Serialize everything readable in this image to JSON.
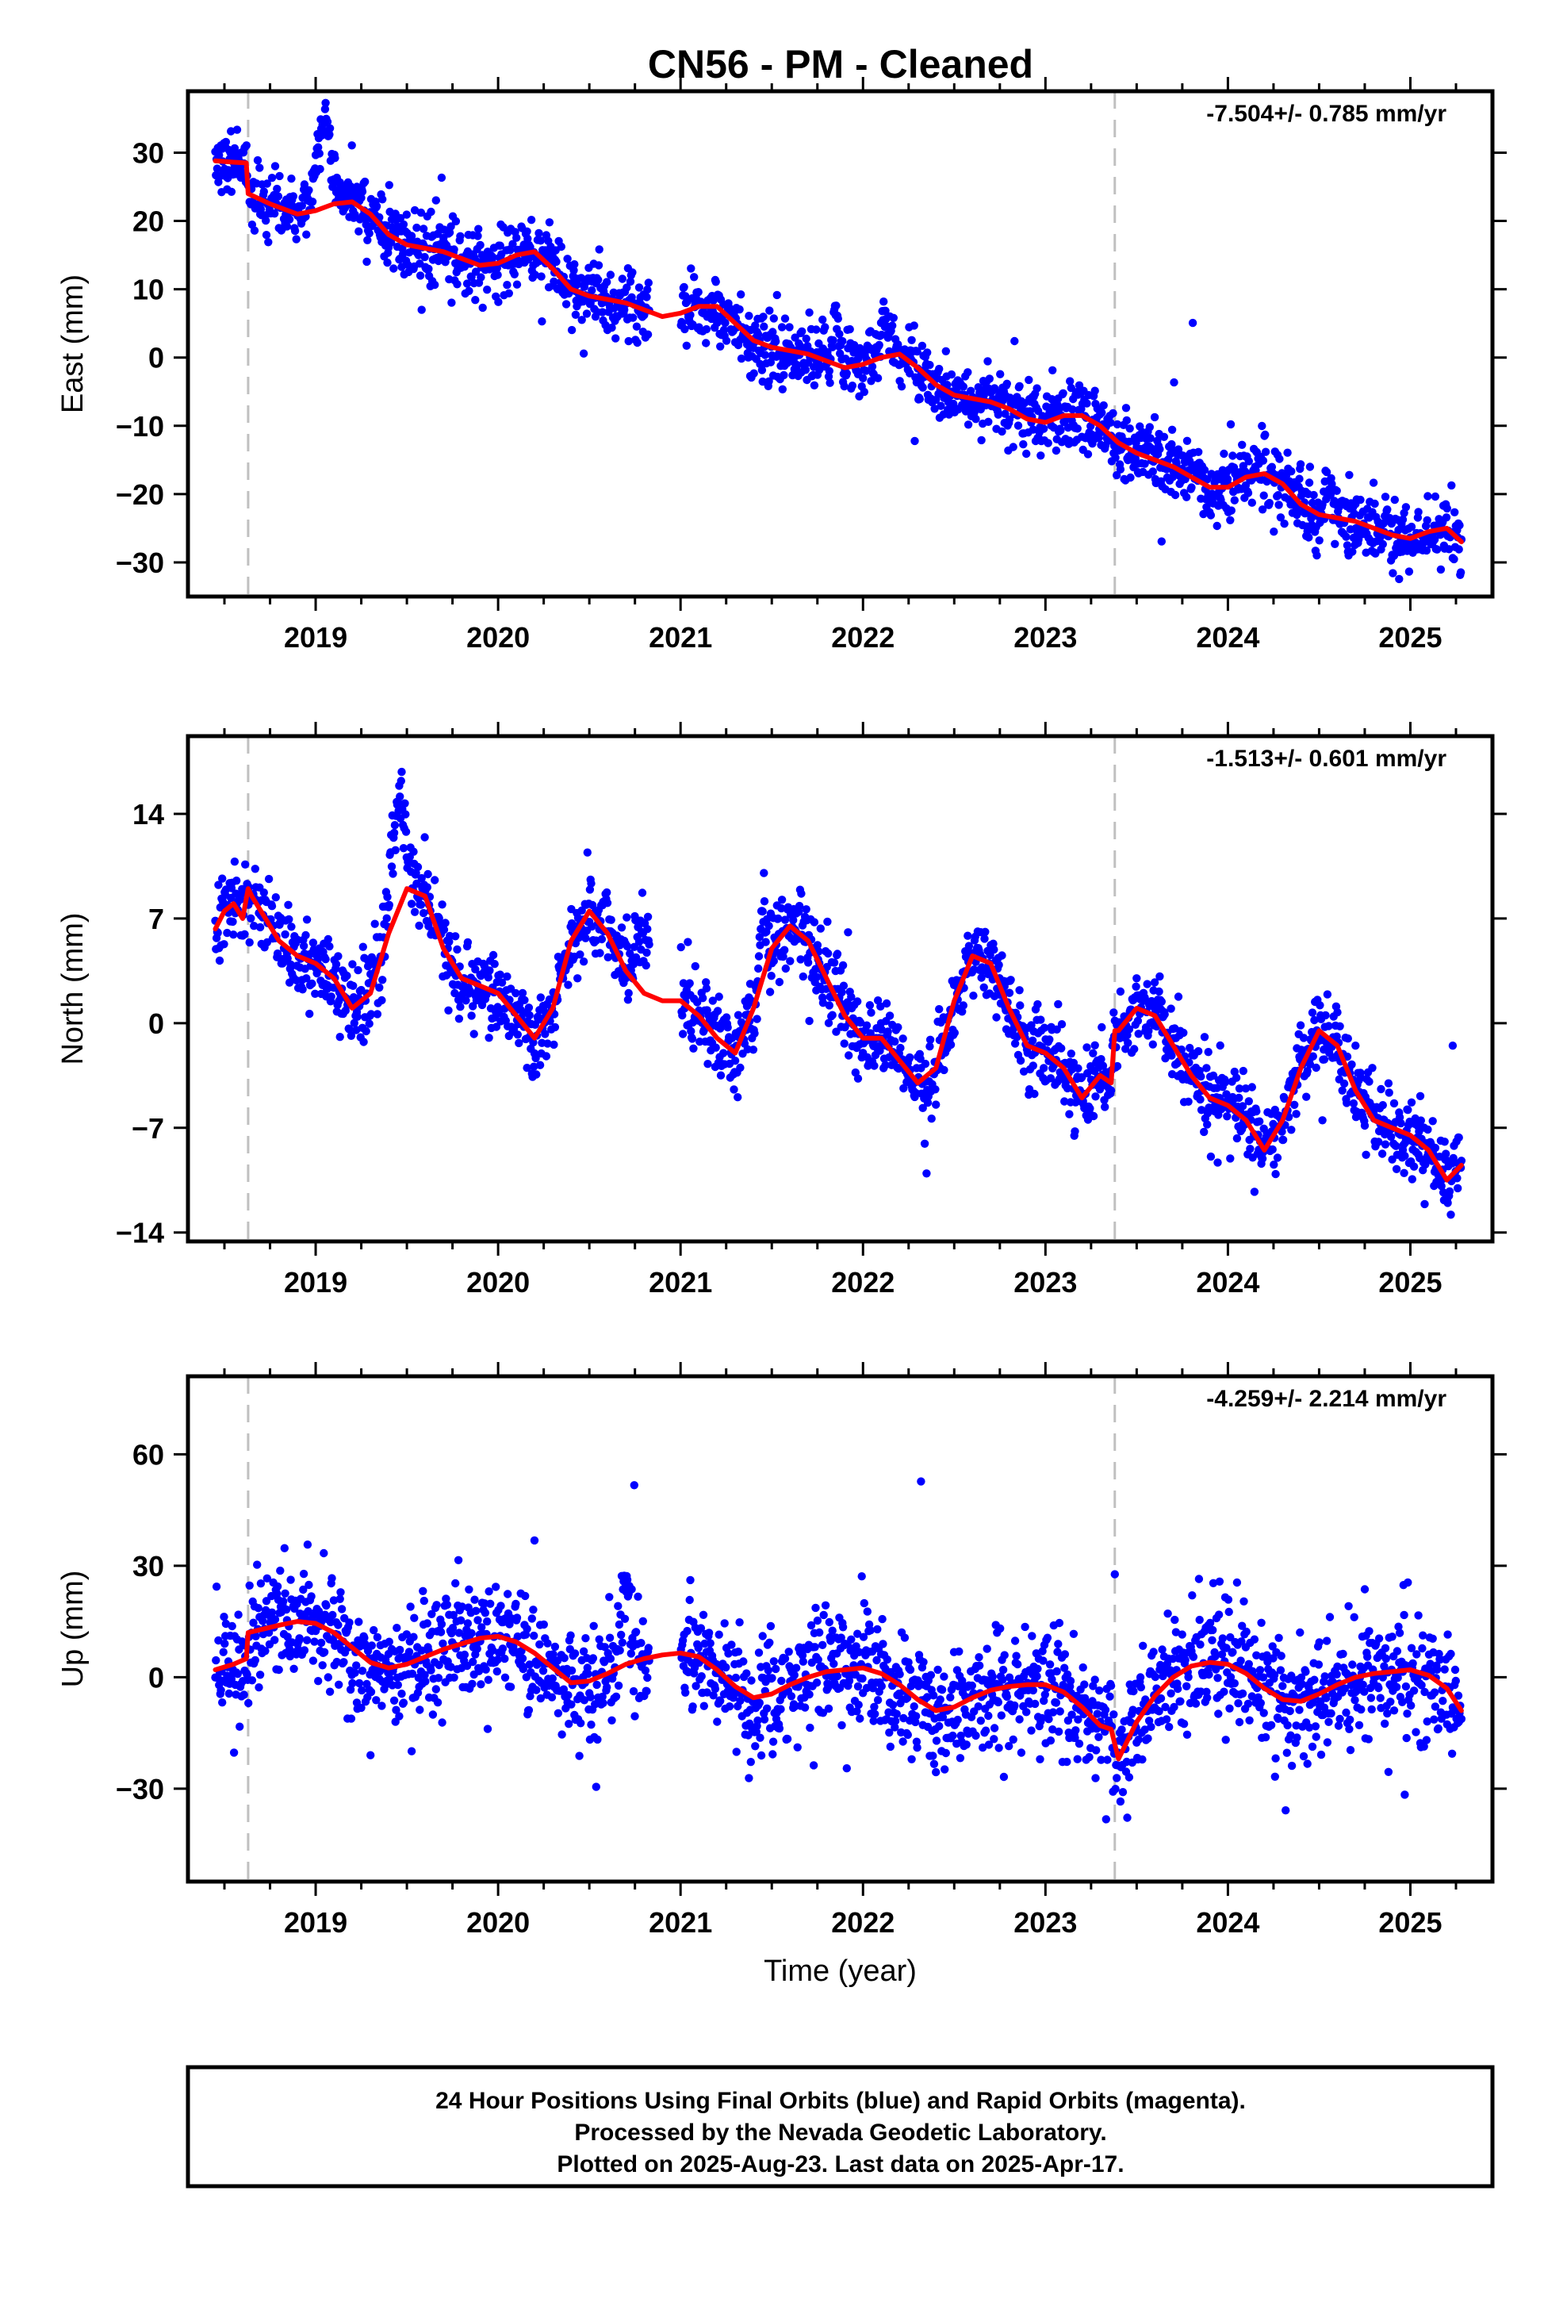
{
  "title": "CN56  - PM - Cleaned",
  "footer": {
    "lines": [
      "24 Hour Positions Using Final Orbits (blue) and Rapid Orbits (magenta).",
      "Processed by the Nevada Geodetic Laboratory.",
      "Plotted on 2025-Aug-23. Last data on 2025-Apr-17."
    ]
  },
  "chart_data": [
    {
      "type": "scatter",
      "ylabel": "East (mm)",
      "xlabel": "",
      "rate_label": "-7.504+/- 0.785 mm/yr",
      "xlim": [
        2018.3,
        2025.45
      ],
      "ylim": [
        -35,
        39
      ],
      "xticks": [
        2019,
        2020,
        2021,
        2022,
        2023,
        2024,
        2025
      ],
      "xtick_labels": [
        "2019",
        "2020",
        "2021",
        "2022",
        "2023",
        "2024",
        "2025"
      ],
      "yticks": [
        -30,
        -20,
        -10,
        0,
        10,
        20,
        30
      ],
      "ytick_labels": [
        "−30",
        "−20",
        "−10",
        "0",
        "10",
        "20",
        "30"
      ],
      "grid": false,
      "vlines": [
        2018.63,
        2023.38
      ],
      "colors": {
        "points": "#0000ff",
        "model": "#ff0000",
        "vline": "#c0c0c0"
      },
      "model": {
        "name": "model",
        "x": [
          2018.45,
          2018.55,
          2018.62,
          2018.63,
          2018.75,
          2018.9,
          2019.0,
          2019.1,
          2019.2,
          2019.3,
          2019.4,
          2019.5,
          2019.6,
          2019.7,
          2019.8,
          2019.9,
          2020.0,
          2020.1,
          2020.2,
          2020.3,
          2020.4,
          2020.5,
          2020.6,
          2020.7,
          2020.8,
          2020.9,
          2021.0,
          2021.1,
          2021.2,
          2021.3,
          2021.4,
          2021.5,
          2021.6,
          2021.7,
          2021.8,
          2021.9,
          2022.0,
          2022.1,
          2022.2,
          2022.3,
          2022.4,
          2022.5,
          2022.6,
          2022.7,
          2022.8,
          2022.9,
          2023.0,
          2023.1,
          2023.2,
          2023.3,
          2023.4,
          2023.5,
          2023.6,
          2023.7,
          2023.8,
          2023.9,
          2024.0,
          2024.1,
          2024.2,
          2024.3,
          2024.4,
          2024.5,
          2024.6,
          2024.7,
          2024.8,
          2024.9,
          2025.0,
          2025.1,
          2025.2,
          2025.28
        ],
        "y": [
          28.8,
          28.6,
          28.5,
          24.0,
          22.5,
          21.0,
          21.5,
          22.5,
          22.8,
          21.0,
          18.0,
          16.5,
          16.0,
          15.5,
          14.5,
          13.5,
          13.8,
          15.0,
          15.5,
          13.0,
          10.0,
          9.0,
          8.5,
          8.0,
          7.0,
          6.0,
          6.5,
          7.5,
          7.5,
          5.0,
          2.5,
          1.5,
          1.0,
          0.5,
          -0.5,
          -1.5,
          -1.0,
          0.0,
          0.5,
          -1.5,
          -4.0,
          -5.5,
          -6.0,
          -6.5,
          -7.5,
          -9.0,
          -9.5,
          -8.5,
          -8.5,
          -10.0,
          -12.5,
          -14.0,
          -15.0,
          -16.0,
          -17.5,
          -19.0,
          -19.0,
          -17.5,
          -17.0,
          -18.5,
          -21.5,
          -23.0,
          -23.5,
          -24.0,
          -25.0,
          -26.0,
          -26.5,
          -25.5,
          -25.0,
          -27.0
        ]
      },
      "noise": 2.4,
      "bumps": [
        [
          2019.05,
          12.0,
          0.06
        ],
        [
          2021.85,
          8.0,
          0.02
        ],
        [
          2022.12,
          5.0,
          0.04
        ],
        [
          2024.55,
          5.0,
          0.03
        ]
      ],
      "points_note": "daily positions (blue)"
    },
    {
      "type": "scatter",
      "ylabel": "North (mm)",
      "xlabel": "",
      "rate_label": "-1.513+/- 0.601 mm/yr",
      "xlim": [
        2018.3,
        2025.45
      ],
      "ylim": [
        -14.6,
        19.2
      ],
      "xticks": [
        2019,
        2020,
        2021,
        2022,
        2023,
        2024,
        2025
      ],
      "xtick_labels": [
        "2019",
        "2020",
        "2021",
        "2022",
        "2023",
        "2024",
        "2025"
      ],
      "yticks": [
        -14,
        -7,
        0,
        7,
        14
      ],
      "ytick_labels": [
        "−14",
        "−7",
        "0",
        "7",
        "14"
      ],
      "grid": false,
      "vlines": [
        2018.63,
        2023.38
      ],
      "colors": {
        "points": "#0000ff",
        "model": "#ff0000",
        "vline": "#c0c0c0"
      },
      "model": {
        "name": "model",
        "x": [
          2018.45,
          2018.5,
          2018.55,
          2018.6,
          2018.63,
          2018.65,
          2018.7,
          2018.8,
          2018.9,
          2019.0,
          2019.1,
          2019.2,
          2019.3,
          2019.4,
          2019.5,
          2019.6,
          2019.7,
          2019.8,
          2019.9,
          2020.0,
          2020.1,
          2020.2,
          2020.3,
          2020.4,
          2020.5,
          2020.6,
          2020.7,
          2020.8,
          2020.9,
          2021.0,
          2021.1,
          2021.2,
          2021.3,
          2021.4,
          2021.5,
          2021.6,
          2021.7,
          2021.8,
          2021.9,
          2022.0,
          2022.1,
          2022.2,
          2022.3,
          2022.4,
          2022.5,
          2022.6,
          2022.7,
          2022.8,
          2022.9,
          2023.0,
          2023.1,
          2023.2,
          2023.3,
          2023.36,
          2023.38,
          2023.4,
          2023.5,
          2023.6,
          2023.7,
          2023.8,
          2023.9,
          2024.0,
          2024.1,
          2024.2,
          2024.3,
          2024.4,
          2024.5,
          2024.6,
          2024.7,
          2024.8,
          2024.9,
          2025.0,
          2025.1,
          2025.2,
          2025.28
        ],
        "y": [
          6.3,
          7.5,
          8.0,
          7.0,
          9.0,
          8.5,
          7.5,
          5.5,
          4.5,
          4.0,
          3.0,
          1.0,
          2.0,
          6.0,
          9.0,
          8.5,
          5.0,
          3.0,
          2.5,
          2.0,
          0.5,
          -1.0,
          1.0,
          5.5,
          7.5,
          6.0,
          3.5,
          2.0,
          1.5,
          1.5,
          0.5,
          -1.0,
          -2.0,
          1.0,
          5.0,
          6.5,
          5.5,
          3.0,
          0.5,
          -1.0,
          -1.0,
          -2.5,
          -4.0,
          -3.0,
          1.5,
          4.5,
          4.0,
          1.0,
          -1.5,
          -2.0,
          -3.0,
          -5.0,
          -3.5,
          -4.0,
          -0.5,
          -0.5,
          1.0,
          0.5,
          -1.5,
          -3.5,
          -5.0,
          -5.5,
          -6.5,
          -8.5,
          -6.5,
          -3.0,
          -0.5,
          -1.5,
          -4.5,
          -6.5,
          -7.0,
          -7.5,
          -8.5,
          -10.5,
          -9.5
        ]
      },
      "noise": 1.3,
      "bumps": [
        [
          2019.45,
          7.0,
          0.05
        ],
        [
          2020.8,
          4.5,
          0.05
        ],
        [
          2021.45,
          5.0,
          0.02
        ]
      ],
      "points_note": "daily positions (blue)"
    },
    {
      "type": "scatter",
      "ylabel": "Up (mm)",
      "xlabel": "Time (year)",
      "rate_label": "-4.259+/- 2.214 mm/yr",
      "xlim": [
        2018.3,
        2025.45
      ],
      "ylim": [
        -55,
        81
      ],
      "xticks": [
        2019,
        2020,
        2021,
        2022,
        2023,
        2024,
        2025
      ],
      "xtick_labels": [
        "2019",
        "2020",
        "2021",
        "2022",
        "2023",
        "2024",
        "2025"
      ],
      "yticks": [
        -30,
        0,
        30,
        60
      ],
      "ytick_labels": [
        "−30",
        "0",
        "30",
        "60"
      ],
      "grid": false,
      "vlines": [
        2018.63,
        2023.38
      ],
      "colors": {
        "points": "#0000ff",
        "model": "#ff0000",
        "vline": "#c0c0c0"
      },
      "model": {
        "name": "model",
        "x": [
          2018.45,
          2018.55,
          2018.62,
          2018.63,
          2018.8,
          2018.9,
          2019.0,
          2019.1,
          2019.2,
          2019.3,
          2019.4,
          2019.5,
          2019.6,
          2019.7,
          2019.8,
          2019.9,
          2020.0,
          2020.1,
          2020.2,
          2020.3,
          2020.4,
          2020.5,
          2020.6,
          2020.7,
          2020.8,
          2020.9,
          2021.0,
          2021.1,
          2021.2,
          2021.3,
          2021.4,
          2021.5,
          2021.6,
          2021.7,
          2021.8,
          2021.9,
          2022.0,
          2022.1,
          2022.2,
          2022.3,
          2022.4,
          2022.5,
          2022.6,
          2022.7,
          2022.8,
          2022.9,
          2023.0,
          2023.1,
          2023.2,
          2023.3,
          2023.36,
          2023.4,
          2023.5,
          2023.6,
          2023.7,
          2023.8,
          2023.9,
          2024.0,
          2024.1,
          2024.2,
          2024.3,
          2024.4,
          2024.5,
          2024.6,
          2024.7,
          2024.8,
          2024.9,
          2025.0,
          2025.1,
          2025.2,
          2025.28
        ],
        "y": [
          2.0,
          3.5,
          5.0,
          12.0,
          14.0,
          15.0,
          14.5,
          12.0,
          8.0,
          4.0,
          2.5,
          3.5,
          5.5,
          7.5,
          9.0,
          10.5,
          11.0,
          9.5,
          6.5,
          2.5,
          -1.5,
          -1.0,
          1.0,
          3.5,
          5.0,
          6.0,
          6.5,
          5.5,
          2.0,
          -2.5,
          -5.5,
          -4.5,
          -2.0,
          0.0,
          1.5,
          2.0,
          2.5,
          1.0,
          -2.0,
          -6.0,
          -9.0,
          -8.0,
          -5.5,
          -3.5,
          -2.5,
          -2.0,
          -2.0,
          -4.0,
          -8.0,
          -13.0,
          -14.0,
          -22.0,
          -12.0,
          -5.0,
          0.0,
          3.0,
          4.0,
          3.5,
          1.0,
          -3.0,
          -6.0,
          -6.5,
          -4.5,
          -2.0,
          0.0,
          1.0,
          1.5,
          2.0,
          0.5,
          -3.0,
          -9.0
        ]
      },
      "noise": 8.0,
      "bumps": [
        [
          2020.7,
          30.0,
          0.03
        ]
      ],
      "points_note": "daily positions (blue)"
    }
  ]
}
